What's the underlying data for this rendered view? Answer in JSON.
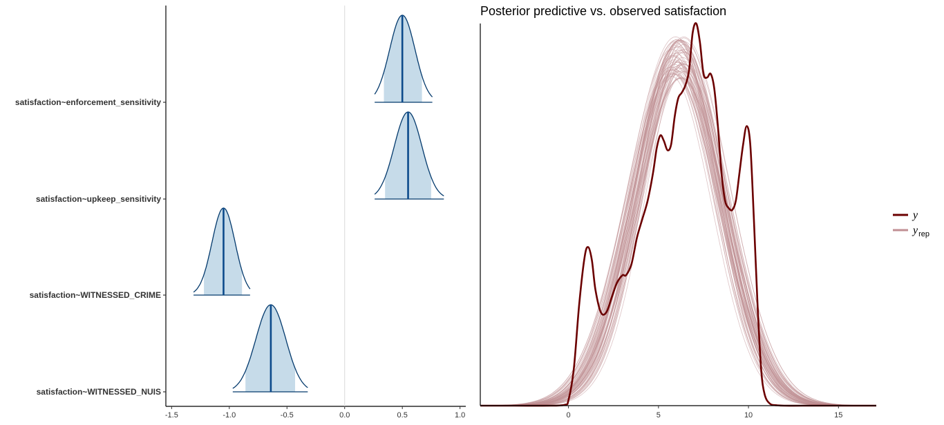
{
  "chart_data": [
    {
      "type": "ridgeline",
      "xlim": [
        -1.55,
        1.05
      ],
      "x_ticks": [
        -1.5,
        -1.0,
        -0.5,
        0.0,
        0.5,
        1.0
      ],
      "x_tick_labels": [
        "-1.5",
        "-1.0",
        "-0.5",
        "0.0",
        "0.5",
        "1.0"
      ],
      "reference_line_x": 0.0,
      "grid": false,
      "colors": {
        "fill": "#c6dbe9",
        "outline": "#03396c",
        "median": "#0c4a8b",
        "refline": "#d9d9d9"
      },
      "parameters": [
        {
          "label": "satisfaction~enforcement_sensitivity",
          "median": 0.5,
          "ci_inner": [
            0.34,
            0.67
          ],
          "ci_outer": [
            0.26,
            0.76
          ],
          "sd": 0.11,
          "skew": 0.0
        },
        {
          "label": "satisfaction~upkeep_sensitivity",
          "median": 0.55,
          "ci_inner": [
            0.35,
            0.75
          ],
          "ci_outer": [
            0.26,
            0.86
          ],
          "sd": 0.12,
          "skew": 0.0
        },
        {
          "label": "satisfaction~WITNESSED_CRIME",
          "median": -1.05,
          "ci_inner": [
            -1.22,
            -0.89
          ],
          "ci_outer": [
            -1.31,
            -0.82
          ],
          "sd": 0.1,
          "skew": 0.0
        },
        {
          "label": "satisfaction~WITNESSED_NUIS",
          "median": -0.64,
          "ci_inner": [
            -0.86,
            -0.43
          ],
          "ci_outer": [
            -0.97,
            -0.32
          ],
          "sd": 0.13,
          "skew": 0.0
        }
      ]
    },
    {
      "type": "line",
      "title": "Posterior predictive vs. observed satisfaction",
      "xlim": [
        -4.9,
        17.1
      ],
      "ylim": [
        0,
        0.205
      ],
      "x_ticks": [
        0,
        5,
        10,
        15
      ],
      "x_tick_labels": [
        "0",
        "5",
        "10",
        "15"
      ],
      "grid": false,
      "legend_position": "right",
      "legend": [
        {
          "key": "y",
          "label": "y",
          "sub": "",
          "color": "#6b0000"
        },
        {
          "key": "yrep",
          "label": "y",
          "sub": "rep",
          "color": "#c08f93"
        }
      ],
      "y_observed": {
        "x": [
          -4.9,
          -3,
          -1,
          -0.2,
          0,
          0.3,
          0.6,
          0.9,
          1.1,
          1.3,
          1.5,
          1.8,
          2.1,
          2.4,
          2.7,
          3.0,
          3.2,
          3.5,
          3.8,
          4.1,
          4.4,
          4.7,
          4.9,
          5.1,
          5.3,
          5.5,
          5.7,
          5.9,
          6.1,
          6.3,
          6.5,
          6.7,
          6.9,
          7.1,
          7.3,
          7.5,
          7.7,
          7.9,
          8.1,
          8.3,
          8.5,
          8.7,
          8.9,
          9.1,
          9.3,
          9.5,
          9.7,
          9.9,
          10.1,
          10.3,
          10.5,
          10.7,
          10.9,
          11.2,
          11.6,
          12,
          13,
          15,
          17.1
        ],
        "y": [
          0.0,
          0.0,
          0.0,
          0.0005,
          0.003,
          0.02,
          0.055,
          0.08,
          0.085,
          0.078,
          0.062,
          0.05,
          0.05,
          0.058,
          0.066,
          0.07,
          0.07,
          0.076,
          0.09,
          0.1,
          0.11,
          0.125,
          0.138,
          0.145,
          0.142,
          0.137,
          0.14,
          0.155,
          0.165,
          0.168,
          0.172,
          0.18,
          0.2,
          0.205,
          0.195,
          0.178,
          0.176,
          0.178,
          0.17,
          0.15,
          0.125,
          0.11,
          0.106,
          0.105,
          0.11,
          0.125,
          0.14,
          0.15,
          0.14,
          0.1,
          0.055,
          0.02,
          0.006,
          0.001,
          0.0002,
          0.0,
          0.0,
          0.0,
          0.0
        ]
      },
      "y_rep": {
        "draws": 60,
        "shape": "normal",
        "mean_range": [
          5.7,
          6.5
        ],
        "sd_range": [
          2.15,
          2.6
        ],
        "peak_density_range": [
          0.175,
          0.198
        ]
      }
    }
  ]
}
